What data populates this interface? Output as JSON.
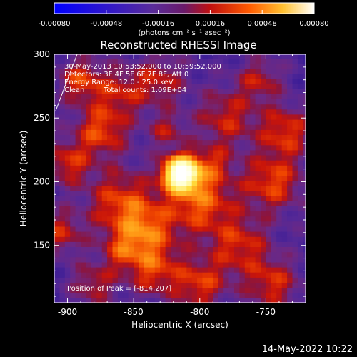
{
  "chart_data": {
    "type": "heatmap",
    "title": "Reconstructed RHESSI Image",
    "xlabel": "Heliocentric X (arcsec)",
    "ylabel": "Heliocentric Y (arcsec)",
    "xlim": [
      -910,
      -720
    ],
    "ylim": [
      105,
      300
    ],
    "x_ticks": [
      -900,
      -850,
      -800,
      -750
    ],
    "x_tick_labels": [
      "-900",
      "-850",
      "-800",
      "-750"
    ],
    "y_ticks": [
      150,
      200,
      250,
      300
    ],
    "y_tick_labels": [
      "150",
      "200",
      "250",
      "300"
    ],
    "colorbar": {
      "range": [
        -0.0008,
        0.0008
      ],
      "ticks": [
        -0.0008,
        -0.00048,
        -0.00016,
        0.00016,
        0.00048,
        0.0008
      ],
      "tick_labels": [
        "-0.00080",
        "-0.00048",
        "-0.00016",
        "0.00016",
        "0.00048",
        "0.00080"
      ],
      "units_label": "(photons cm⁻² s⁻¹ asec⁻²)"
    },
    "annotations": {
      "time_range": "30-May-2013 10:53:52.000 to 10:59:52.000",
      "detectors": "Detectors: 3F 4F 5F 6F 7F 8F, Att 0",
      "energy_range": "Energy Range: 12.0 - 25.0 keV",
      "algorithm": "Clean",
      "total_counts": "Total counts: 1.09E+04",
      "peak_position": "Position of Peak = [-814,207]"
    },
    "peak": {
      "x": -814,
      "y": 207
    }
  },
  "footer": {
    "timestamp": "14-May-2022 10:22"
  },
  "colors": {
    "background": "#000000",
    "text": "#ffffff",
    "colormap": [
      "#0000ff",
      "#2b16c8",
      "#5a2aa0",
      "#6e2aa0",
      "#a0105a",
      "#d01a00",
      "#ff5a00",
      "#ffb020",
      "#ffffc0",
      "#ffffff"
    ]
  }
}
